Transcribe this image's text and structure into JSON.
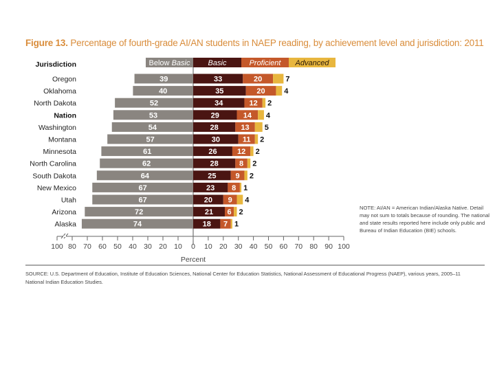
{
  "figure": {
    "label": "Figure 13.",
    "title": "Percentage of fourth-grade AI/AN students in NAEP reading, by achievement level and jurisdiction: 2011"
  },
  "colors": {
    "below_basic": "#8a8580",
    "basic": "#4a1512",
    "proficient": "#c4582a",
    "advanced": "#e8b63e",
    "title": "#d98c3a"
  },
  "chart_data": {
    "type": "bar",
    "subtype": "diverging-stacked-horizontal",
    "title": "Percentage of fourth-grade AI/AN students in NAEP reading, by achievement level and jurisdiction: 2011",
    "category_header": "Jurisdiction",
    "xlabel": "Percent",
    "ylabel": "",
    "xlim": [
      -100,
      100
    ],
    "x_ticks_left": [
      "100",
      "80",
      "70",
      "60",
      "50",
      "40",
      "30",
      "20",
      "10",
      "0"
    ],
    "x_ticks_right": [
      "10",
      "20",
      "30",
      "40",
      "50",
      "60",
      "70",
      "80",
      "90",
      "100"
    ],
    "axis_break": "between 100 and 80 on left side",
    "legend": {
      "placement": "top",
      "entries": [
        "Below Basic",
        "Basic",
        "Proficient",
        "Advanced"
      ]
    },
    "categories": [
      "Oregon",
      "Oklahoma",
      "North Dakota",
      "Nation",
      "Washington",
      "Montana",
      "Minnesota",
      "North Carolina",
      "South Dakota",
      "New Mexico",
      "Utah",
      "Arizona",
      "Alaska"
    ],
    "bold_categories": [
      "Nation"
    ],
    "series": [
      {
        "name": "Below Basic",
        "direction": "left",
        "values": [
          39,
          40,
          52,
          53,
          54,
          57,
          61,
          62,
          64,
          67,
          67,
          72,
          74
        ]
      },
      {
        "name": "Basic",
        "direction": "right",
        "values": [
          33,
          35,
          34,
          29,
          28,
          30,
          26,
          28,
          25,
          23,
          20,
          21,
          18
        ]
      },
      {
        "name": "Proficient",
        "direction": "right",
        "values": [
          20,
          20,
          12,
          14,
          13,
          11,
          12,
          8,
          9,
          8,
          9,
          6,
          7
        ]
      },
      {
        "name": "Advanced",
        "direction": "right",
        "values": [
          7,
          4,
          2,
          4,
          5,
          2,
          2,
          2,
          2,
          1,
          4,
          2,
          1
        ]
      }
    ],
    "grid": false
  },
  "note": "NOTE: AI/AN = American Indian/Alaska Native. Detail may not sum to totals because of rounding. The national and state results reported here include only public and Bureau of Indian Education (BIE) schools.",
  "source": "SOURCE: U.S. Department of Education, Institute of Education Sciences, National Center for Education Statistics, National Assessment of Educational Progress (NAEP), various years, 2005–11 National Indian Education Studies."
}
